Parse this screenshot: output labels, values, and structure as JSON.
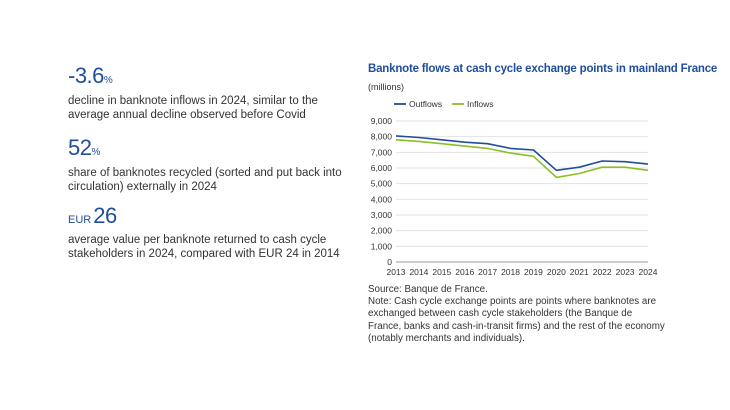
{
  "stats": [
    {
      "prefix": "",
      "value": "-3.6",
      "unit": "%",
      "description": "decline in banknote inflows in 2024, similar to the average annual decline observed before Covid"
    },
    {
      "prefix": "",
      "value": "52",
      "unit": "%",
      "description": "share of banknotes recycled (sorted and put back into circulation) externally in 2024"
    },
    {
      "prefix": "EUR",
      "value": "26",
      "unit": "",
      "description": "average value per banknote returned to cash cycle stakeholders in 2024, compared with EUR 24 in 2014"
    }
  ],
  "source": "Source: Banque de France.",
  "note": "Note: Cash cycle exchange points are points where banknotes are exchanged between cash cycle stakeholders (the Banque de France, banks and cash-in-transit firms) and the rest of the economy (notably merchants and individuals).",
  "colors": {
    "outflows": "#1f4e9c",
    "inflows": "#8cbf26",
    "accent": "#1f4e9c"
  },
  "chart_data": {
    "type": "line",
    "title": "Banknote flows at cash cycle exchange points in mainland France",
    "unit_label": "(millions)",
    "x": [
      "2013",
      "2014",
      "2015",
      "2016",
      "2017",
      "2018",
      "2019",
      "2020",
      "2021",
      "2022",
      "2023",
      "2024"
    ],
    "ylim": [
      0,
      9000
    ],
    "yticks": [
      0,
      1000,
      2000,
      3000,
      4000,
      5000,
      6000,
      7000,
      8000,
      9000
    ],
    "ytick_labels": [
      "0",
      "1,000",
      "2,000",
      "3,000",
      "4,000",
      "5,000",
      "6,000",
      "7,000",
      "8,000",
      "9,000"
    ],
    "grid": true,
    "legend_position": "top-left",
    "series": [
      {
        "name": "Outflows",
        "values": [
          8050,
          7950,
          7800,
          7650,
          7550,
          7250,
          7150,
          5850,
          6050,
          6450,
          6400,
          6250
        ]
      },
      {
        "name": "Inflows",
        "values": [
          7800,
          7700,
          7550,
          7400,
          7250,
          6950,
          6750,
          5400,
          5650,
          6050,
          6050,
          5850
        ]
      }
    ]
  }
}
